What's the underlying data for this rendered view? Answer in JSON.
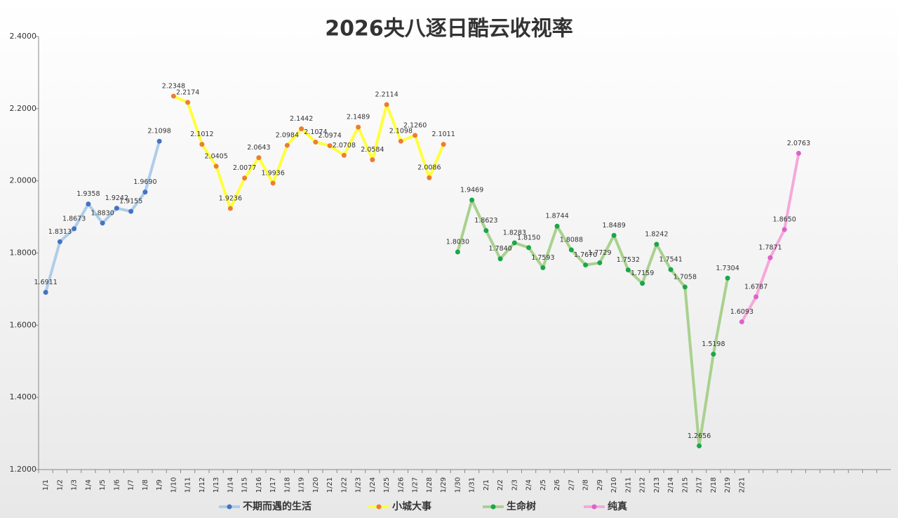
{
  "chart_data": {
    "type": "line",
    "title": "2026央八逐日酷云收视率",
    "categories": [
      "1/1",
      "1/2",
      "1/3",
      "1/4",
      "1/5",
      "1/6",
      "1/7",
      "1/8",
      "1/9",
      "1/10",
      "1/11",
      "1/12",
      "1/13",
      "1/14",
      "1/15",
      "1/16",
      "1/17",
      "1/18",
      "1/19",
      "1/20",
      "1/21",
      "1/22",
      "1/23",
      "1/24",
      "1/25",
      "1/26",
      "1/27",
      "1/28",
      "1/29",
      "1/30",
      "1/31",
      "2/1",
      "2/2",
      "2/3",
      "2/4",
      "2/5",
      "2/6",
      "2/7",
      "2/8",
      "2/9",
      "2/10",
      "2/11",
      "2/12",
      "2/13",
      "2/14",
      "2/15",
      "2/17",
      "2/18",
      "2/19",
      "2/21",
      null,
      null,
      null,
      null,
      null,
      null,
      null,
      null,
      null,
      null
    ],
    "series": [
      {
        "name": "不期而遇的生活",
        "color": "#aecde9",
        "marker_color": "#4472c4",
        "values": [
          1.6911,
          1.8313,
          1.8673,
          1.9358,
          1.883,
          1.9242,
          1.9155,
          1.969,
          2.1098,
          null,
          null,
          null,
          null,
          null,
          null,
          null,
          null,
          null,
          null,
          null,
          null,
          null,
          null,
          null,
          null,
          null,
          null,
          null,
          null,
          null,
          null,
          null,
          null,
          null,
          null,
          null,
          null,
          null,
          null,
          null,
          null,
          null,
          null,
          null,
          null,
          null,
          null,
          null,
          null,
          null,
          null,
          null,
          null,
          null,
          null,
          null,
          null,
          null,
          null,
          null
        ],
        "value_labels": [
          "1.6911",
          "1.8313",
          "1.8673",
          "1.9358",
          "1.8830",
          "1.9242",
          "1.9155",
          "1.9690",
          "2.1098",
          null,
          null,
          null,
          null,
          null,
          null,
          null,
          null,
          null,
          null,
          null,
          null,
          null,
          null,
          null,
          null,
          null,
          null,
          null,
          null,
          null,
          null,
          null,
          null,
          null,
          null,
          null,
          null,
          null,
          null,
          null,
          null,
          null,
          null,
          null,
          null,
          null,
          null,
          null,
          null,
          null,
          null,
          null,
          null,
          null,
          null,
          null,
          null,
          null,
          null,
          null
        ]
      },
      {
        "name": "小城大事",
        "color": "#ffff3c",
        "marker_color": "#ed7d31",
        "values": [
          null,
          null,
          null,
          null,
          null,
          null,
          null,
          null,
          null,
          2.2348,
          2.2174,
          2.1012,
          2.0405,
          1.9236,
          2.0077,
          2.0643,
          1.9936,
          2.0984,
          2.1442,
          2.1074,
          2.0974,
          2.0708,
          2.1489,
          2.0584,
          2.2114,
          2.1098,
          2.126,
          2.0086,
          2.1011,
          null,
          null,
          null,
          null,
          null,
          null,
          null,
          null,
          null,
          null,
          null,
          null,
          null,
          null,
          null,
          null,
          null,
          null,
          null,
          null,
          null,
          null,
          null,
          null,
          null,
          null,
          null,
          null,
          null,
          null,
          null
        ],
        "value_labels": [
          null,
          null,
          null,
          null,
          null,
          null,
          null,
          null,
          null,
          "2.2348",
          "2.2174",
          "2.1012",
          "2.0405",
          "1.9236",
          "2.0077",
          "2.0643",
          "1.9936",
          "2.0984",
          "2.1442",
          "2.1074",
          "2.0974",
          "2.0708",
          "2.1489",
          "2.0584",
          "2.2114",
          "2.1098",
          "2.1260",
          "2.0086",
          "2.1011",
          null,
          null,
          null,
          null,
          null,
          null,
          null,
          null,
          null,
          null,
          null,
          null,
          null,
          null,
          null,
          null,
          null,
          null,
          null,
          null,
          null,
          null,
          null,
          null,
          null,
          null,
          null,
          null,
          null,
          null,
          null
        ]
      },
      {
        "name": "生命树",
        "color": "#a9d18e",
        "marker_color": "#1aa64a",
        "values": [
          null,
          null,
          null,
          null,
          null,
          null,
          null,
          null,
          null,
          null,
          null,
          null,
          null,
          null,
          null,
          null,
          null,
          null,
          null,
          null,
          null,
          null,
          null,
          null,
          null,
          null,
          null,
          null,
          null,
          1.803,
          1.9469,
          1.8623,
          1.784,
          1.8283,
          1.815,
          1.7593,
          1.8744,
          1.8088,
          1.767,
          1.7729,
          1.8489,
          1.7532,
          1.7159,
          1.8242,
          1.7541,
          1.7058,
          1.2656,
          1.5198,
          1.7304,
          null,
          null,
          null,
          null,
          null,
          null,
          null,
          null,
          null,
          null,
          null
        ],
        "value_labels": [
          null,
          null,
          null,
          null,
          null,
          null,
          null,
          null,
          null,
          null,
          null,
          null,
          null,
          null,
          null,
          null,
          null,
          null,
          null,
          null,
          null,
          null,
          null,
          null,
          null,
          null,
          null,
          null,
          null,
          "1.8030",
          "1.9469",
          "1.8623",
          "1.7840",
          "1.8283",
          "1.8150",
          "1.7593",
          "1.8744",
          "1.8088",
          "1.7670",
          "1.7729",
          "1.8489",
          "1.7532",
          "1.7159",
          "1.8242",
          "1.7541",
          "1.7058",
          "1.2656",
          "1.5198",
          "1.7304",
          null,
          null,
          null,
          null,
          null,
          null,
          null,
          null,
          null,
          null,
          null
        ]
      },
      {
        "name": "纯真",
        "color": "#f5a8da",
        "marker_color": "#e060c8",
        "values": [
          null,
          null,
          null,
          null,
          null,
          null,
          null,
          null,
          null,
          null,
          null,
          null,
          null,
          null,
          null,
          null,
          null,
          null,
          null,
          null,
          null,
          null,
          null,
          null,
          null,
          null,
          null,
          null,
          null,
          null,
          null,
          null,
          null,
          null,
          null,
          null,
          null,
          null,
          null,
          null,
          null,
          null,
          null,
          null,
          null,
          null,
          null,
          null,
          null,
          1.6093,
          1.6787,
          1.7871,
          1.865,
          2.0763,
          null,
          null,
          null,
          null,
          null,
          null
        ],
        "value_labels": [
          null,
          null,
          null,
          null,
          null,
          null,
          null,
          null,
          null,
          null,
          null,
          null,
          null,
          null,
          null,
          null,
          null,
          null,
          null,
          null,
          null,
          null,
          null,
          null,
          null,
          null,
          null,
          null,
          null,
          null,
          null,
          null,
          null,
          null,
          null,
          null,
          null,
          null,
          null,
          null,
          null,
          null,
          null,
          null,
          null,
          null,
          null,
          null,
          null,
          "1.6093",
          "1.6787",
          "1.7871",
          "1.8650",
          "2.0763",
          null,
          null,
          null,
          null,
          null,
          null
        ]
      }
    ],
    "ylim": [
      1.2,
      2.4
    ],
    "yticks": [
      {
        "value": 1.2,
        "label": "1.2000"
      },
      {
        "value": 1.4,
        "label": "1.4000"
      },
      {
        "value": 1.6,
        "label": "1.6000"
      },
      {
        "value": 1.8,
        "label": "1.8000"
      },
      {
        "value": 2.0,
        "label": "2.0000"
      },
      {
        "value": 2.2,
        "label": "2.2000"
      },
      {
        "value": 2.4,
        "label": "2.4000"
      }
    ],
    "grid": false,
    "legend": "bottom"
  }
}
